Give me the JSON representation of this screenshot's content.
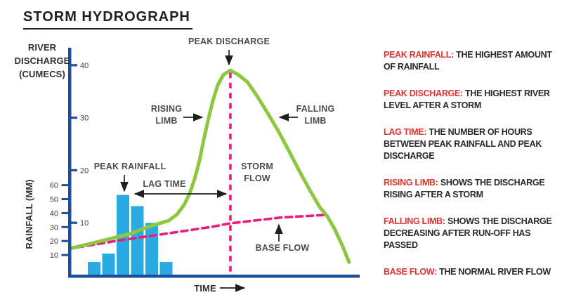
{
  "title": "STORM HYDROGRAPH",
  "colors": {
    "axis_blue": "#1d4f9e",
    "bar_blue": "#29abe2",
    "discharge_green": "#8dc63f",
    "baseflow_pink": "#ea1d7d",
    "term_red": "#e0332f",
    "text_dark": "#2b282a",
    "label_gray": "#4c4c4e"
  },
  "chart_data": {
    "type": "combo",
    "title": "STORM HYDROGRAPH",
    "x_axis": {
      "label": "TIME",
      "ticks": []
    },
    "discharge_axis": {
      "label": "RIVER DISCHARGE (CUMECS)",
      "label_lines": [
        "RIVER",
        "DISCHARGE",
        "(CUMECS)"
      ],
      "ticks": [
        40,
        30,
        20,
        10
      ],
      "range": [
        0,
        43
      ]
    },
    "rainfall_axis": {
      "label": "RAINFALL (MM)",
      "ticks": [
        60,
        50,
        40,
        30,
        20,
        10
      ],
      "range": [
        0,
        60
      ]
    },
    "rainfall_bars": {
      "type": "bar",
      "unit": "mm",
      "values": [
        5,
        11,
        53,
        45,
        33,
        5
      ]
    },
    "discharge_curve": {
      "type": "line",
      "name": "river discharge",
      "unit": "cumecs",
      "points": [
        [
          0,
          5.1
        ],
        [
          9.8,
          6.4
        ],
        [
          20.7,
          7.9
        ],
        [
          28,
          9.4
        ],
        [
          34.1,
          10.4
        ],
        [
          37.1,
          11.6
        ],
        [
          39.5,
          13.4
        ],
        [
          41.5,
          15.6
        ],
        [
          43.2,
          18.4
        ],
        [
          44.9,
          21.9
        ],
        [
          46.3,
          25.7
        ],
        [
          47.8,
          29.4
        ],
        [
          49.5,
          33.2
        ],
        [
          51.2,
          36.2
        ],
        [
          53.2,
          38.2
        ],
        [
          55.6,
          39
        ],
        [
          58.3,
          38.2
        ],
        [
          61.5,
          36.8
        ],
        [
          64.9,
          34.1
        ],
        [
          68.5,
          30.9
        ],
        [
          72.2,
          27.5
        ],
        [
          75.9,
          23.7
        ],
        [
          79.5,
          19.9
        ],
        [
          83.2,
          16.2
        ],
        [
          86.6,
          13
        ],
        [
          89.3,
          11.2
        ],
        [
          91.9,
          8.7
        ],
        [
          94.6,
          5.5
        ],
        [
          96.8,
          2.5
        ]
      ]
    },
    "base_flow_curve": {
      "type": "line",
      "name": "base flow",
      "style": "dashed",
      "unit": "cumecs",
      "points": [
        [
          2.4,
          5.3
        ],
        [
          16.6,
          6.6
        ],
        [
          31.7,
          7.8
        ],
        [
          48.8,
          9.2
        ],
        [
          55.6,
          9.9
        ],
        [
          73.2,
          11
        ],
        [
          89,
          11.5
        ]
      ]
    },
    "peak_discharge_marker": {
      "style": "dashed-vertical",
      "t": 55.6,
      "value": 39
    },
    "lag_time_span": {
      "from_t": 22,
      "to_t": 55.6
    },
    "annotations": {
      "peak_discharge": "PEAK DISCHARGE",
      "rising_limb": [
        "RISING",
        "LIMB"
      ],
      "falling_limb": [
        "FALLING",
        "LIMB"
      ],
      "peak_rainfall": "PEAK RAINFALL",
      "lag_time": "LAG TIME",
      "storm_flow": [
        "STORM",
        "FLOW"
      ],
      "base_flow": "BASE FLOW"
    }
  },
  "definitions": [
    {
      "term": "PEAK RAINFALL:",
      "definition": "THE HIGHEST AMOUNT OF RAINFALL"
    },
    {
      "term": "PEAK DISCHARGE:",
      "definition": "THE HIGHEST RIVER LEVEL AFTER A STORM"
    },
    {
      "term": "LAG TIME:",
      "definition": "THE NUMBER OF HOURS BETWEEN PEAK RAINFALL AND PEAK DISCHARGE"
    },
    {
      "term": "RISING LIMB:",
      "definition": "SHOWS THE DISCHARGE RISING AFTER A STORM"
    },
    {
      "term": "FALLING LIMB:",
      "definition": "SHOWS THE DISCHARGE DECREASING AFTER RUN-OFF HAS PASSED"
    },
    {
      "term": "BASE FLOW:",
      "definition": "THE NORMAL RIVER FLOW"
    }
  ]
}
